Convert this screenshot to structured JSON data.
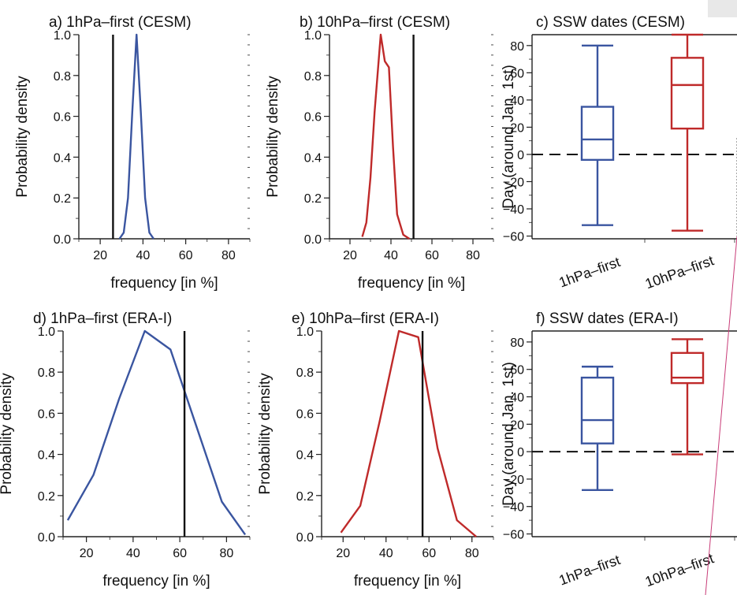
{
  "colors": {
    "blue": "#3a55a0",
    "red": "#bf2a2a",
    "black": "#111111",
    "gray_overlay": "#e8e8e8",
    "pink_line": "#c83c78"
  },
  "chart_data": [
    {
      "id": "a",
      "type": "line",
      "title": "a)  1hPa–first (CESM)",
      "xlabel": "frequency [in %]",
      "ylabel": "Probability density",
      "xlim": [
        10,
        90
      ],
      "ylim": [
        0,
        1.0
      ],
      "xticks": [
        20,
        40,
        60,
        80
      ],
      "yticks": [
        0.0,
        0.2,
        0.4,
        0.6,
        0.8,
        1.0
      ],
      "xtick_labels": [
        "20",
        "40",
        "60",
        "80"
      ],
      "ytick_labels": [
        "0.0",
        "0.2",
        "0.4",
        "0.6",
        "0.8",
        "1.0"
      ],
      "series": [
        {
          "color": "#3a55a0",
          "x": [
            29,
            31,
            33,
            35,
            37,
            39,
            41,
            43,
            45
          ],
          "y": [
            0.0,
            0.03,
            0.2,
            0.62,
            1.0,
            0.62,
            0.2,
            0.03,
            0.0
          ]
        }
      ],
      "vline": 26
    },
    {
      "id": "b",
      "type": "line",
      "title": "b)  10hPa–first (CESM)",
      "xlabel": "frequency [in %]",
      "ylabel": "Probability density",
      "xlim": [
        10,
        90
      ],
      "ylim": [
        0,
        1.0
      ],
      "xticks": [
        20,
        40,
        60,
        80
      ],
      "yticks": [
        0.0,
        0.2,
        0.4,
        0.6,
        0.8,
        1.0
      ],
      "xtick_labels": [
        "20",
        "40",
        "60",
        "80"
      ],
      "ytick_labels": [
        "0.0",
        "0.2",
        "0.4",
        "0.6",
        "0.8",
        "1.0"
      ],
      "series": [
        {
          "color": "#bf2a2a",
          "x": [
            26,
            28,
            30,
            32,
            35,
            37,
            39,
            41,
            43,
            46,
            49
          ],
          "y": [
            0.01,
            0.08,
            0.3,
            0.62,
            1.0,
            0.87,
            0.84,
            0.45,
            0.12,
            0.02,
            0.0
          ]
        }
      ],
      "vline": 51
    },
    {
      "id": "c",
      "type": "box",
      "title": "c)  SSW dates (CESM)",
      "ylabel": "Day (around Jan. 1st)",
      "ylim": [
        -62,
        88
      ],
      "yticks": [
        -60,
        -40,
        -20,
        0,
        20,
        40,
        60,
        80
      ],
      "ytick_labels": [
        "−60",
        "−40",
        "−20",
        "0",
        "20",
        "40",
        "60",
        "80"
      ],
      "categories": [
        "1hPa–first",
        "10hPa–first"
      ],
      "boxes": [
        {
          "color": "#3a55a0",
          "min": -52,
          "q1": -4,
          "median": 11,
          "q3": 35,
          "max": 80
        },
        {
          "color": "#bf2a2a",
          "min": -56,
          "q1": 19,
          "median": 51,
          "q3": 71,
          "max": 88
        }
      ],
      "hline": 0
    },
    {
      "id": "d",
      "type": "line",
      "title": "d)  1hPa–first (ERA-I)",
      "xlabel": "frequency [in %]",
      "ylabel": "Probability density",
      "xlim": [
        10,
        90
      ],
      "ylim": [
        0,
        1.0
      ],
      "xticks": [
        20,
        40,
        60,
        80
      ],
      "yticks": [
        0.0,
        0.2,
        0.4,
        0.6,
        0.8,
        1.0
      ],
      "xtick_labels": [
        "20",
        "40",
        "60",
        "80"
      ],
      "ytick_labels": [
        "0.0",
        "0.2",
        "0.4",
        "0.6",
        "0.8",
        "1.0"
      ],
      "series": [
        {
          "color": "#3a55a0",
          "x": [
            12,
            23,
            34,
            45,
            56,
            67,
            78,
            88
          ],
          "y": [
            0.08,
            0.3,
            0.67,
            1.0,
            0.91,
            0.54,
            0.17,
            0.01
          ]
        }
      ],
      "vline": 62
    },
    {
      "id": "e",
      "type": "line",
      "title": "e)  10hPa–first (ERA-I)",
      "xlabel": "frequency [in %]",
      "ylabel": "Probability density",
      "xlim": [
        10,
        90
      ],
      "ylim": [
        0,
        1.0
      ],
      "xticks": [
        20,
        40,
        60,
        80
      ],
      "yticks": [
        0.0,
        0.2,
        0.4,
        0.6,
        0.8,
        1.0
      ],
      "xtick_labels": [
        "20",
        "40",
        "60",
        "80"
      ],
      "ytick_labels": [
        "0.0",
        "0.2",
        "0.4",
        "0.6",
        "0.8",
        "1.0"
      ],
      "series": [
        {
          "color": "#bf2a2a",
          "x": [
            19,
            28,
            37,
            46,
            55,
            64,
            73,
            82
          ],
          "y": [
            0.02,
            0.15,
            0.56,
            1.0,
            0.97,
            0.43,
            0.08,
            0.0
          ]
        }
      ],
      "vline": 57
    },
    {
      "id": "f",
      "type": "box",
      "title": "f)  SSW dates (ERA-I)",
      "ylabel": "Day (around Jan. 1st)",
      "ylim": [
        -62,
        88
      ],
      "yticks": [
        -60,
        -40,
        -20,
        0,
        20,
        40,
        60,
        80
      ],
      "ytick_labels": [
        "−60",
        "−40",
        "−20",
        "0",
        "20",
        "40",
        "60",
        "80"
      ],
      "categories": [
        "1hPa–first",
        "10hPa–first"
      ],
      "boxes": [
        {
          "color": "#3a55a0",
          "min": -28,
          "q1": 6,
          "median": 23,
          "q3": 54,
          "max": 62
        },
        {
          "color": "#bf2a2a",
          "min": -2,
          "q1": 50,
          "median": 54,
          "q3": 72,
          "max": 82
        }
      ],
      "hline": 0
    }
  ]
}
